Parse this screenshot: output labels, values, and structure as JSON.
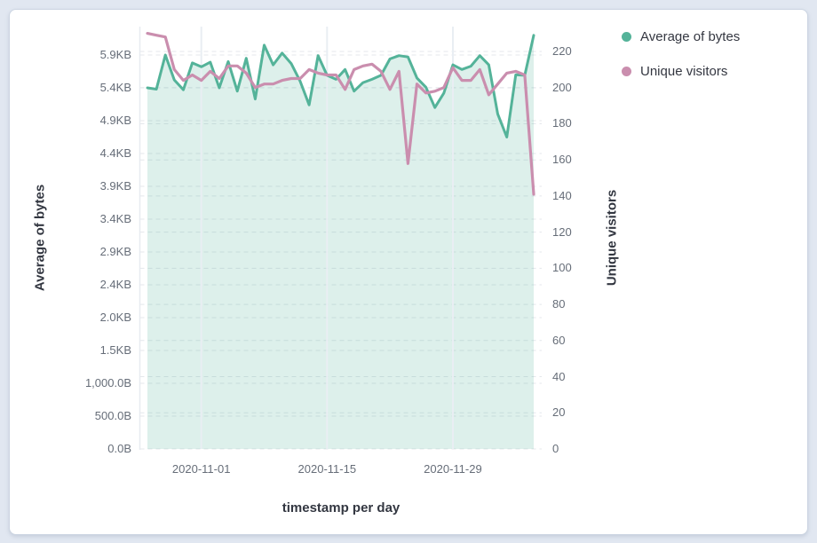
{
  "page": {
    "background": "#e1e7f1",
    "card_background": "#ffffff",
    "card_border": "#ccd5e2"
  },
  "legend": {
    "items": [
      {
        "label": "Average of bytes",
        "color": "#54b399"
      },
      {
        "label": "Unique visitors",
        "color": "#ca8eae"
      }
    ]
  },
  "chart_data": {
    "type": "area",
    "subtype": "dual-axis area + line, daily time series",
    "title": "",
    "legend_position": "top-right",
    "grid": {
      "horizontal": "dashed",
      "vertical_at_date_ticks": true
    },
    "x_axis": {
      "title": "timestamp per day",
      "tick_labels": [
        "2020-11-01",
        "2020-11-15",
        "2020-11-29"
      ]
    },
    "left_axis": {
      "title": "Average of bytes",
      "unit": "bytes",
      "range": [
        0,
        6000
      ],
      "tick_values": [
        0,
        500,
        1000,
        1500,
        2000,
        2500,
        3000,
        3500,
        4000,
        4500,
        5000,
        5500,
        6000
      ],
      "tick_labels": [
        "0.0B",
        "500.0B",
        "1,000.0B",
        "1.5KB",
        "2.0KB",
        "2.4KB",
        "2.9KB",
        "3.4KB",
        "3.9KB",
        "4.4KB",
        "4.9KB",
        "5.4KB",
        "5.9KB"
      ]
    },
    "right_axis": {
      "title": "Unique visitors",
      "range": [
        0,
        220
      ],
      "tick_values": [
        0,
        20,
        40,
        60,
        80,
        100,
        120,
        140,
        160,
        180,
        200,
        220
      ],
      "tick_labels": [
        "0",
        "20",
        "40",
        "60",
        "80",
        "100",
        "120",
        "140",
        "160",
        "180",
        "200",
        "220"
      ]
    },
    "x": [
      "2020-10-26",
      "2020-10-27",
      "2020-10-28",
      "2020-10-29",
      "2020-10-30",
      "2020-10-31",
      "2020-11-01",
      "2020-11-02",
      "2020-11-03",
      "2020-11-04",
      "2020-11-05",
      "2020-11-06",
      "2020-11-07",
      "2020-11-08",
      "2020-11-09",
      "2020-11-10",
      "2020-11-11",
      "2020-11-12",
      "2020-11-13",
      "2020-11-14",
      "2020-11-15",
      "2020-11-16",
      "2020-11-17",
      "2020-11-18",
      "2020-11-19",
      "2020-11-20",
      "2020-11-21",
      "2020-11-22",
      "2020-11-23",
      "2020-11-24",
      "2020-11-25",
      "2020-11-26",
      "2020-11-27",
      "2020-11-28",
      "2020-11-29",
      "2020-11-30",
      "2020-12-01",
      "2020-12-02",
      "2020-12-03",
      "2020-12-04",
      "2020-12-05",
      "2020-12-06",
      "2020-12-07",
      "2020-12-08"
    ],
    "series": [
      {
        "name": "Average of bytes",
        "type": "area",
        "axis": "left",
        "color": "#54b399",
        "fill": "rgba(84,179,153,0.2)",
        "values": [
          5500,
          5480,
          6000,
          5620,
          5470,
          5880,
          5820,
          5890,
          5500,
          5900,
          5450,
          5950,
          5330,
          6150,
          5850,
          6030,
          5870,
          5600,
          5240,
          5990,
          5690,
          5630,
          5780,
          5450,
          5580,
          5630,
          5690,
          5940,
          5990,
          5970,
          5650,
          5510,
          5200,
          5420,
          5850,
          5780,
          5830,
          5990,
          5850,
          5100,
          4750,
          5700,
          5690,
          6300
        ]
      },
      {
        "name": "Unique visitors",
        "type": "line",
        "axis": "right",
        "color": "#ca8eae",
        "values": [
          230,
          229,
          228,
          210,
          204,
          207,
          204,
          209,
          205,
          212,
          212,
          208,
          200,
          202,
          202,
          204,
          205,
          205,
          210,
          208,
          207,
          207,
          199,
          210,
          212,
          213,
          209,
          199,
          209,
          158,
          202,
          197,
          198,
          200,
          211,
          204,
          204,
          210,
          196,
          202,
          208,
          209,
          207,
          141
        ]
      }
    ]
  }
}
